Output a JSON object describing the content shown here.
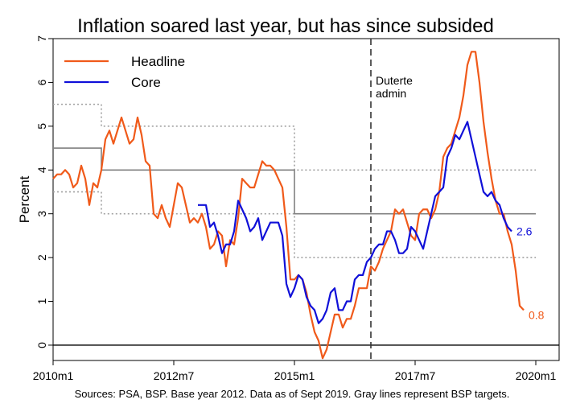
{
  "chart_data": {
    "type": "line",
    "title": "Inflation soared last year, but has since subsided",
    "ylabel": "Percent",
    "xlabel": "",
    "ylim": [
      -0.35,
      7
    ],
    "yticks": [
      0,
      1,
      2,
      3,
      4,
      5,
      6,
      7
    ],
    "x_start": "2010m1",
    "x_end": "2020m1",
    "xticks": [
      {
        "label": "2010m1",
        "t": 0
      },
      {
        "label": "2012m7",
        "t": 30
      },
      {
        "label": "2015m1",
        "t": 60
      },
      {
        "label": "2017m7",
        "t": 90
      },
      {
        "label": "2020m1",
        "t": 120
      }
    ],
    "legend": [
      "Headline",
      "Core"
    ],
    "legend_position": "top-left",
    "colors": {
      "headline": "#f05a1a",
      "core": "#1010d8",
      "target": "#808080",
      "band": "#a0a0a0",
      "zero": "#000000"
    },
    "annotation": {
      "lines": [
        "Duterte",
        "admin"
      ],
      "t": 79
    },
    "end_labels": {
      "headline": "0.8",
      "core": "2.6"
    },
    "caption": "Sources: PSA, BSP. Base year 2012. Data as of Sept 2019. Gray lines represent BSP targets.",
    "series": [
      {
        "name": "Headline",
        "start_t": 0,
        "values": [
          3.8,
          3.9,
          3.9,
          4.0,
          3.9,
          3.6,
          3.7,
          4.1,
          3.8,
          3.2,
          3.7,
          3.6,
          4.0,
          4.7,
          4.9,
          4.6,
          4.9,
          5.2,
          4.9,
          4.6,
          4.7,
          5.2,
          4.8,
          4.2,
          4.1,
          3.0,
          2.9,
          3.2,
          2.9,
          2.7,
          3.2,
          3.7,
          3.6,
          3.2,
          2.8,
          2.9,
          2.8,
          3.0,
          2.7,
          2.2,
          2.3,
          2.6,
          2.5,
          1.8,
          2.4,
          2.3,
          2.9,
          3.8,
          3.7,
          3.6,
          3.6,
          3.9,
          4.2,
          4.1,
          4.1,
          4.0,
          3.8,
          3.6,
          2.7,
          1.5,
          1.5,
          1.6,
          1.5,
          1.2,
          0.7,
          0.3,
          0.1,
          -0.3,
          -0.1,
          0.3,
          0.7,
          0.7,
          0.4,
          0.6,
          0.6,
          0.9,
          1.3,
          1.3,
          1.3,
          1.8,
          1.7,
          1.9,
          2.2,
          2.4,
          2.6,
          3.1,
          3.0,
          3.1,
          2.8,
          2.5,
          2.4,
          3.0,
          3.1,
          3.1,
          2.9,
          3.1,
          3.5,
          4.3,
          4.5,
          4.6,
          4.9,
          5.2,
          5.7,
          6.4,
          6.7,
          6.7,
          6.0,
          5.1,
          4.4,
          3.8,
          3.3,
          3.0,
          3.0,
          2.6,
          2.3,
          1.7,
          0.9,
          0.8
        ]
      },
      {
        "name": "Core",
        "start_t": 36,
        "values": [
          3.2,
          3.2,
          3.2,
          2.7,
          2.8,
          2.5,
          2.1,
          2.3,
          2.3,
          2.6,
          3.3,
          3.1,
          2.9,
          2.6,
          2.7,
          2.9,
          2.4,
          2.6,
          2.8,
          2.8,
          2.8,
          2.5,
          1.4,
          1.1,
          1.3,
          1.6,
          1.5,
          1.1,
          0.9,
          0.8,
          0.5,
          0.6,
          0.8,
          1.2,
          1.3,
          0.8,
          0.8,
          1.0,
          1.0,
          1.5,
          1.6,
          1.6,
          1.9,
          2.0,
          2.2,
          2.3,
          2.3,
          2.6,
          2.6,
          2.4,
          2.1,
          2.1,
          2.2,
          2.7,
          2.6,
          2.4,
          2.2,
          2.6,
          3.0,
          3.4,
          3.5,
          3.6,
          4.3,
          4.5,
          4.8,
          4.7,
          4.9,
          5.1,
          4.7,
          4.3,
          3.9,
          3.5,
          3.4,
          3.5,
          3.3,
          3.2,
          2.9,
          2.7,
          2.6
        ]
      }
    ],
    "targets": {
      "midpoint": [
        {
          "from_t": 0,
          "to_t": 12,
          "v": 4.5
        },
        {
          "from_t": 12,
          "to_t": 60,
          "v": 4.0
        },
        {
          "from_t": 60,
          "to_t": 120,
          "v": 3.0
        }
      ],
      "upper": [
        {
          "from_t": 0,
          "to_t": 12,
          "v": 5.5
        },
        {
          "from_t": 12,
          "to_t": 60,
          "v": 5.0
        },
        {
          "from_t": 60,
          "to_t": 120,
          "v": 4.0
        }
      ],
      "lower": [
        {
          "from_t": 0,
          "to_t": 12,
          "v": 3.5
        },
        {
          "from_t": 12,
          "to_t": 60,
          "v": 3.0
        },
        {
          "from_t": 60,
          "to_t": 120,
          "v": 2.0
        }
      ]
    }
  }
}
